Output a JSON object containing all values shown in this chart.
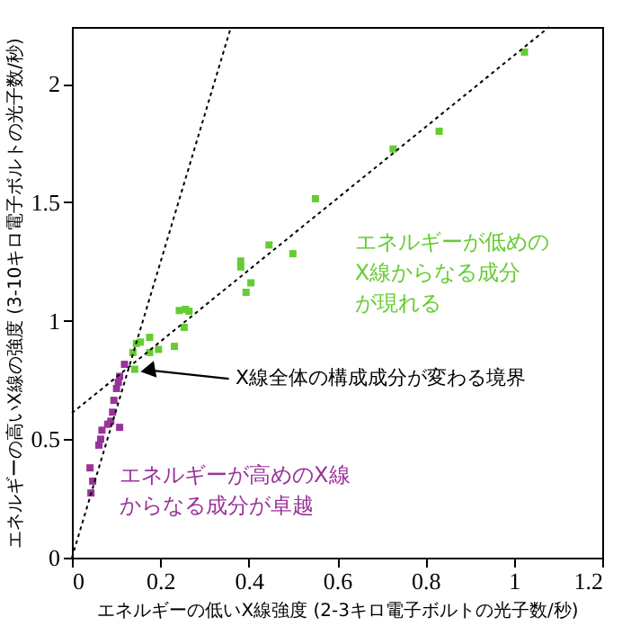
{
  "chart_data": {
    "type": "scatter",
    "xlabel": "エネルギーの低いX線強度 (2-3キロ電子ボルトの光子数/秒)",
    "ylabel": "エネルギーの高いX線の強度 (3-10キロ電子ボルトの光子数/秒)",
    "xlim": [
      0,
      1.2
    ],
    "ylim": [
      0,
      2.24
    ],
    "xticks": [
      0,
      0.2,
      0.4,
      0.6,
      0.8,
      1,
      1.2
    ],
    "yticks": [
      0,
      0.5,
      1,
      1.5,
      2
    ],
    "grid": false,
    "series": [
      {
        "marker": "square",
        "color": "#66cc33",
        "x": [
          1.024,
          0.831,
          0.727,
          0.551,
          0.5,
          0.446,
          0.382,
          0.382,
          0.405,
          0.394,
          0.243,
          0.257,
          0.265,
          0.254,
          0.232,
          0.176,
          0.155,
          0.146,
          0.196,
          0.138,
          0.176,
          0.142
        ],
        "values": [
          2.134,
          1.8,
          1.725,
          1.515,
          1.283,
          1.32,
          1.252,
          1.227,
          1.16,
          1.12,
          1.043,
          1.048,
          1.04,
          0.972,
          0.892,
          0.93,
          0.91,
          0.904,
          0.879,
          0.866,
          0.866,
          0.795
        ]
      },
      {
        "marker": "square",
        "color": "#993399",
        "x": [
          0.119,
          0.108,
          0.105,
          0.101,
          0.095,
          0.092,
          0.088,
          0.081,
          0.108,
          0.068,
          0.065,
          0.061,
          0.041,
          0.047,
          0.043
        ],
        "values": [
          0.816,
          0.765,
          0.74,
          0.714,
          0.664,
          0.614,
          0.576,
          0.563,
          0.55,
          0.538,
          0.5,
          0.475,
          0.379,
          0.323,
          0.273
        ]
      },
      {
        "type": "line",
        "color": "#000000",
        "line_style": "dotted",
        "x": [
          0,
          0.36
        ],
        "values": [
          0,
          2.24
        ]
      },
      {
        "type": "line",
        "color": "#000000",
        "line_style": "dotted",
        "x": [
          0,
          1.08
        ],
        "values": [
          0.61,
          2.24
        ]
      }
    ],
    "annotations": [
      "エネルギーが低めのX線からなる成分が現れる",
      "エネルギーが高めのX線からなる成分が卓越",
      {
        "text": "X線全体の構成成分が変わる境界",
        "x": 0.16,
        "y": 0.79
      }
    ]
  }
}
